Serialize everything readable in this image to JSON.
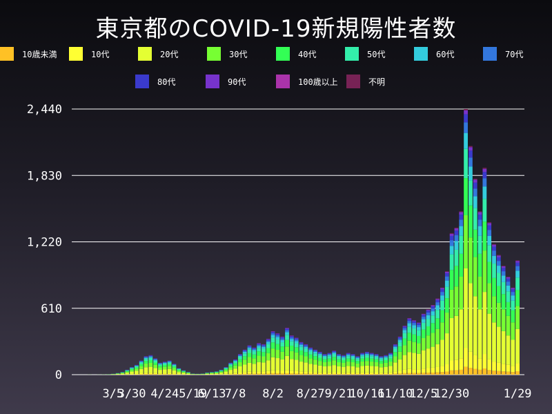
{
  "chart_data": {
    "type": "bar",
    "stacked": true,
    "title": "東京都のCOVID-19新規陽性者数",
    "xlabel": "",
    "ylabel": "",
    "ylim": [
      0,
      2440
    ],
    "yticks": [
      "0",
      "610",
      "1,220",
      "1,830",
      "2,440"
    ],
    "ytick_values": [
      0,
      610,
      1220,
      1830,
      2440
    ],
    "xticks": [
      "3/5",
      "3/30",
      "4/24",
      "5/19",
      "6/13",
      "7/8",
      "8/2",
      "8/27",
      "9/21",
      "10/16",
      "11/10",
      "12/5",
      "12/30",
      "1/29"
    ],
    "grid": true,
    "legend_placement": "top",
    "categories": [
      "10歳未満",
      "10代",
      "20代",
      "30代",
      "40代",
      "50代",
      "60代",
      "70代",
      "80代",
      "90代",
      "100歳以上",
      "不明"
    ],
    "colors": [
      "#ffc125",
      "#ffff33",
      "#e4ff33",
      "#77ff33",
      "#33ff55",
      "#33eeaa",
      "#33ccdd",
      "#3377dd",
      "#3a3acc",
      "#7733cc",
      "#aa33aa",
      "#772255"
    ],
    "x": [
      "1/24",
      "1/31",
      "2/7",
      "2/14",
      "2/21",
      "2/28",
      "3/5",
      "3/12",
      "3/19",
      "3/26",
      "3/30",
      "4/3",
      "4/7",
      "4/10",
      "4/13",
      "4/17",
      "4/20",
      "4/24",
      "4/28",
      "5/2",
      "5/6",
      "5/10",
      "5/14",
      "5/19",
      "5/26",
      "6/2",
      "6/9",
      "6/13",
      "6/20",
      "6/27",
      "7/2",
      "7/5",
      "7/8",
      "7/11",
      "7/14",
      "7/17",
      "7/20",
      "7/23",
      "7/26",
      "7/29",
      "8/2",
      "8/5",
      "8/8",
      "8/11",
      "8/14",
      "8/17",
      "8/20",
      "8/23",
      "8/27",
      "8/31",
      "9/4",
      "9/8",
      "9/12",
      "9/16",
      "9/21",
      "9/25",
      "9/29",
      "10/3",
      "10/7",
      "10/11",
      "10/16",
      "10/20",
      "10/24",
      "10/28",
      "11/1",
      "11/5",
      "11/10",
      "11/14",
      "11/18",
      "11/22",
      "11/26",
      "11/30",
      "12/5",
      "12/9",
      "12/13",
      "12/17",
      "12/21",
      "12/25",
      "12/30",
      "1/2",
      "1/5",
      "1/7",
      "1/9",
      "1/11",
      "1/13",
      "1/15",
      "1/17",
      "1/19",
      "1/21",
      "1/23",
      "1/25",
      "1/27",
      "1/29"
    ],
    "series_totals": [
      0,
      1,
      0,
      1,
      2,
      4,
      8,
      15,
      25,
      45,
      70,
      90,
      130,
      170,
      180,
      150,
      110,
      120,
      130,
      100,
      60,
      40,
      25,
      10,
      8,
      10,
      20,
      25,
      30,
      45,
      70,
      110,
      140,
      190,
      230,
      270,
      250,
      290,
      280,
      330,
      400,
      380,
      350,
      430,
      360,
      340,
      300,
      280,
      250,
      230,
      210,
      190,
      200,
      220,
      190,
      180,
      200,
      190,
      170,
      200,
      210,
      200,
      190,
      170,
      180,
      200,
      280,
      350,
      450,
      520,
      500,
      480,
      560,
      600,
      640,
      700,
      800,
      950,
      1300,
      1350,
      1500,
      2440,
      2100,
      1800,
      1500,
      1900,
      1400,
      1200,
      1100,
      1000,
      900,
      800,
      1050
    ],
    "series": [
      {
        "name": "10歳未満",
        "share": 0.03
      },
      {
        "name": "10代",
        "share": 0.07
      },
      {
        "name": "20代",
        "share": 0.3
      },
      {
        "name": "30代",
        "share": 0.2
      },
      {
        "name": "40代",
        "share": 0.14
      },
      {
        "name": "50代",
        "share": 0.11
      },
      {
        "name": "60代",
        "share": 0.06
      },
      {
        "name": "70代",
        "share": 0.04
      },
      {
        "name": "80代",
        "share": 0.03
      },
      {
        "name": "90代",
        "share": 0.015
      },
      {
        "name": "100歳以上",
        "share": 0.0
      },
      {
        "name": "不明",
        "share": 0.005
      }
    ]
  }
}
